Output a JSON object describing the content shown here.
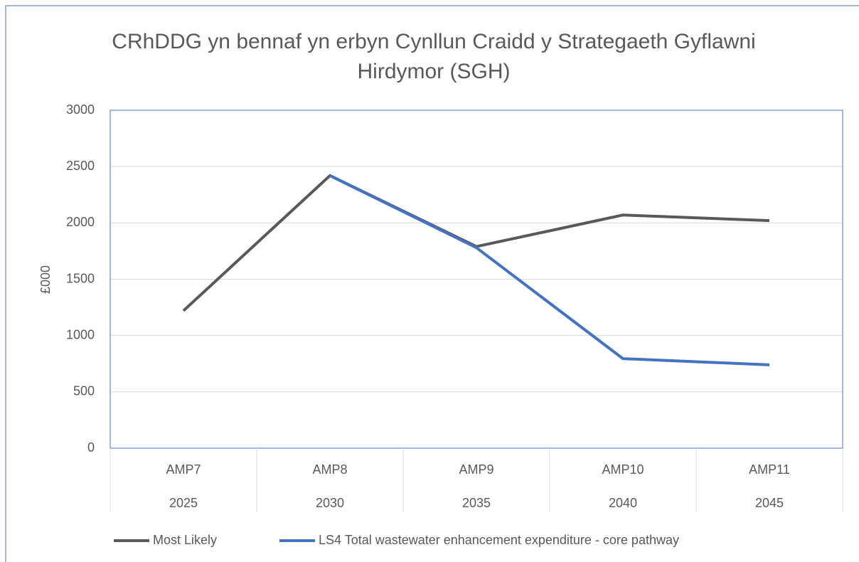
{
  "chart_data": {
    "type": "line",
    "title": "CRhDDG yn bennaf yn erbyn Cynllun Craidd y Strategaeth Gyflawni Hirdymor (SGH)",
    "ylabel": "£000",
    "categories": [
      "AMP7",
      "AMP8",
      "AMP9",
      "AMP10",
      "AMP11"
    ],
    "years": [
      "2025",
      "2030",
      "2035",
      "2040",
      "2045"
    ],
    "series": [
      {
        "name": "Most Likely",
        "color": "#595959",
        "values": [
          1220,
          2420,
          1790,
          2070,
          2020
        ]
      },
      {
        "name": "LS4 Total wastewater enhancement expenditure - core pathway",
        "color": "#4472c4",
        "values": [
          null,
          2420,
          1780,
          795,
          740
        ]
      }
    ],
    "ylim": [
      0,
      3000
    ],
    "yticks": [
      0,
      500,
      1000,
      1500,
      2000,
      2500,
      3000
    ],
    "grid": true,
    "legend": "bottom"
  }
}
